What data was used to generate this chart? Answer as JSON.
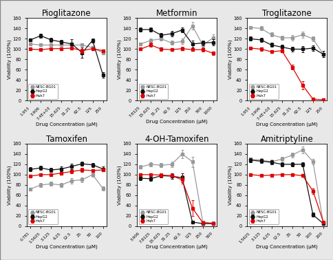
{
  "plots": [
    {
      "title": "Pioglitazone",
      "xticklabels": [
        "1.953",
        "3.906",
        "7.4E+03",
        "15.625",
        "31.25",
        "62.5",
        "125",
        "250"
      ],
      "nesc": [
        100,
        99,
        101,
        101,
        102,
        97,
        101,
        97
      ],
      "hepg2": [
        118,
        126,
        118,
        114,
        110,
        93,
        117,
        50
      ],
      "huh7": [
        110,
        108,
        108,
        108,
        108,
        108,
        103,
        93
      ],
      "nesc_err": [
        2,
        2,
        2,
        2,
        2,
        4,
        2,
        2
      ],
      "hepg2_err": [
        3,
        4,
        4,
        4,
        9,
        10,
        4,
        5
      ],
      "huh7_err": [
        2,
        2,
        2,
        2,
        2,
        2,
        2,
        2
      ],
      "ylim": [
        0,
        160
      ],
      "yticks": [
        0,
        20,
        40,
        60,
        80,
        100,
        120,
        140,
        160
      ]
    },
    {
      "title": "Metformin",
      "xticklabels": [
        "7.8125",
        "15.625",
        "31.25",
        "62.5",
        "125",
        "250",
        "500",
        "1000"
      ],
      "nesc": [
        100,
        108,
        100,
        99,
        101,
        99,
        99,
        92
      ],
      "hepg2": [
        138,
        138,
        127,
        130,
        137,
        110,
        112,
        113
      ],
      "huh7": [
        110,
        117,
        120,
        112,
        115,
        145,
        108,
        122
      ],
      "nesc_err": [
        2,
        4,
        3,
        2,
        3,
        3,
        4,
        3
      ],
      "hepg2_err": [
        4,
        4,
        4,
        5,
        5,
        7,
        5,
        6
      ],
      "huh7_err": [
        3,
        4,
        4,
        4,
        5,
        7,
        5,
        7
      ],
      "ylim": [
        0,
        160
      ],
      "yticks": [
        0,
        20,
        40,
        60,
        80,
        100,
        120,
        140,
        160
      ]
    },
    {
      "title": "Troglitazone",
      "xticklabels": [
        "1.953",
        "3.906",
        "7.4E+03",
        "15.625",
        "31.25",
        "62.5",
        "125",
        "250"
      ],
      "nesc": [
        102,
        100,
        95,
        97,
        65,
        30,
        3,
        2
      ],
      "hepg2": [
        120,
        118,
        108,
        104,
        100,
        100,
        102,
        90
      ],
      "huh7": [
        142,
        140,
        128,
        122,
        122,
        128,
        120,
        90
      ],
      "nesc_err": [
        3,
        3,
        3,
        3,
        5,
        8,
        2,
        1
      ],
      "hepg2_err": [
        4,
        4,
        4,
        5,
        5,
        6,
        5,
        6
      ],
      "huh7_err": [
        3,
        4,
        4,
        4,
        5,
        6,
        5,
        6
      ],
      "ylim": [
        0,
        160
      ],
      "yticks": [
        0,
        20,
        40,
        60,
        80,
        100,
        120,
        140,
        160
      ]
    },
    {
      "title": "Tamoxifen",
      "xticklabels": [
        "0.781",
        "1.5625",
        "3.125",
        "6.25",
        "12.5",
        "25",
        "50",
        "100"
      ],
      "nesc": [
        97,
        100,
        100,
        103,
        106,
        109,
        108,
        109
      ],
      "hepg2": [
        110,
        113,
        109,
        111,
        116,
        121,
        119,
        111
      ],
      "huh7": [
        72,
        80,
        82,
        80,
        88,
        90,
        100,
        73
      ],
      "nesc_err": [
        2,
        2,
        3,
        2,
        3,
        4,
        3,
        3
      ],
      "hepg2_err": [
        4,
        4,
        4,
        5,
        5,
        4,
        4,
        5
      ],
      "huh7_err": [
        3,
        4,
        4,
        4,
        5,
        5,
        4,
        4
      ],
      "ylim": [
        0,
        160
      ],
      "yticks": [
        0,
        20,
        40,
        60,
        80,
        100,
        120,
        140,
        160
      ]
    },
    {
      "title": "4-OH-Tamoxifen",
      "xticklabels": [
        "3.906",
        "7.8125",
        "15.625",
        "31.25",
        "62.5",
        "125",
        "250",
        "500"
      ],
      "nesc": [
        100,
        100,
        99,
        98,
        90,
        35,
        7,
        5
      ],
      "hepg2": [
        93,
        92,
        98,
        97,
        94,
        8,
        5,
        5
      ],
      "huh7": [
        115,
        120,
        118,
        120,
        140,
        125,
        8,
        6
      ],
      "nesc_err": [
        2,
        2,
        3,
        2,
        8,
        15,
        2,
        2
      ],
      "hepg2_err": [
        4,
        4,
        4,
        5,
        9,
        3,
        2,
        2
      ],
      "huh7_err": [
        3,
        4,
        4,
        5,
        8,
        10,
        3,
        2
      ],
      "ylim": [
        0,
        160
      ],
      "yticks": [
        0,
        20,
        40,
        60,
        80,
        100,
        120,
        140,
        160
      ]
    },
    {
      "title": "Amitriptyline",
      "xticklabels": [
        "1.5625",
        "3.125",
        "6.25",
        "12.5",
        "25",
        "50",
        "100",
        "200"
      ],
      "nesc": [
        100,
        98,
        99,
        100,
        100,
        98,
        68,
        8
      ],
      "hepg2": [
        128,
        126,
        124,
        120,
        120,
        120,
        22,
        5
      ],
      "huh7": [
        130,
        128,
        125,
        130,
        138,
        148,
        125,
        5
      ],
      "nesc_err": [
        2,
        2,
        2,
        2,
        3,
        2,
        5,
        2
      ],
      "hepg2_err": [
        4,
        4,
        4,
        4,
        4,
        4,
        4,
        2
      ],
      "huh7_err": [
        3,
        4,
        4,
        4,
        5,
        7,
        5,
        2
      ],
      "ylim": [
        0,
        160
      ],
      "yticks": [
        0,
        20,
        40,
        60,
        80,
        100,
        120,
        140,
        160
      ]
    }
  ],
  "nesc_color": "#dd0000",
  "hepg2_color": "#111111",
  "huh7_color": "#999999",
  "ylabel": "Viability (100%)",
  "xlabel": "Drug Concentration (μM)",
  "legend_labels": [
    "NESC-BG01",
    "HepG2",
    "Huh7"
  ],
  "markersize": 3.5,
  "linewidth": 0.9,
  "fig_bgcolor": "#e8e8e8",
  "plot_bgcolor": "#ffffff"
}
